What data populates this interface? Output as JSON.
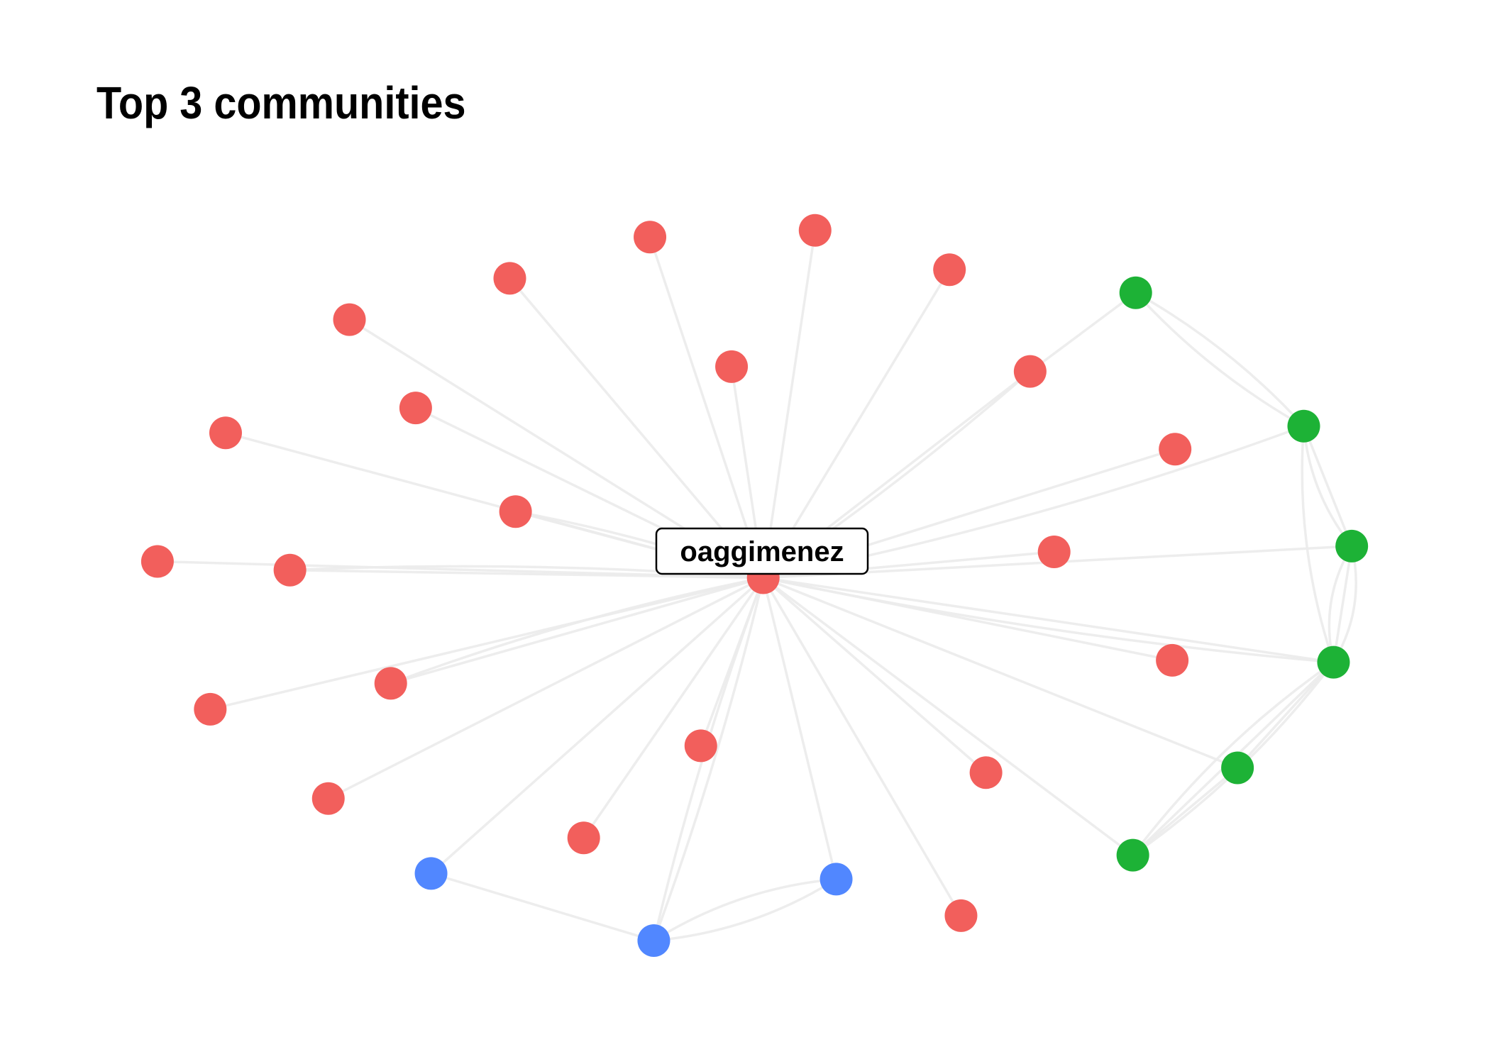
{
  "title": "Top 3 communities",
  "colors": {
    "community_1": "#F25F5C",
    "community_2": "#1DB236",
    "community_3": "#5187FF"
  },
  "label": "oaggimenez"
}
